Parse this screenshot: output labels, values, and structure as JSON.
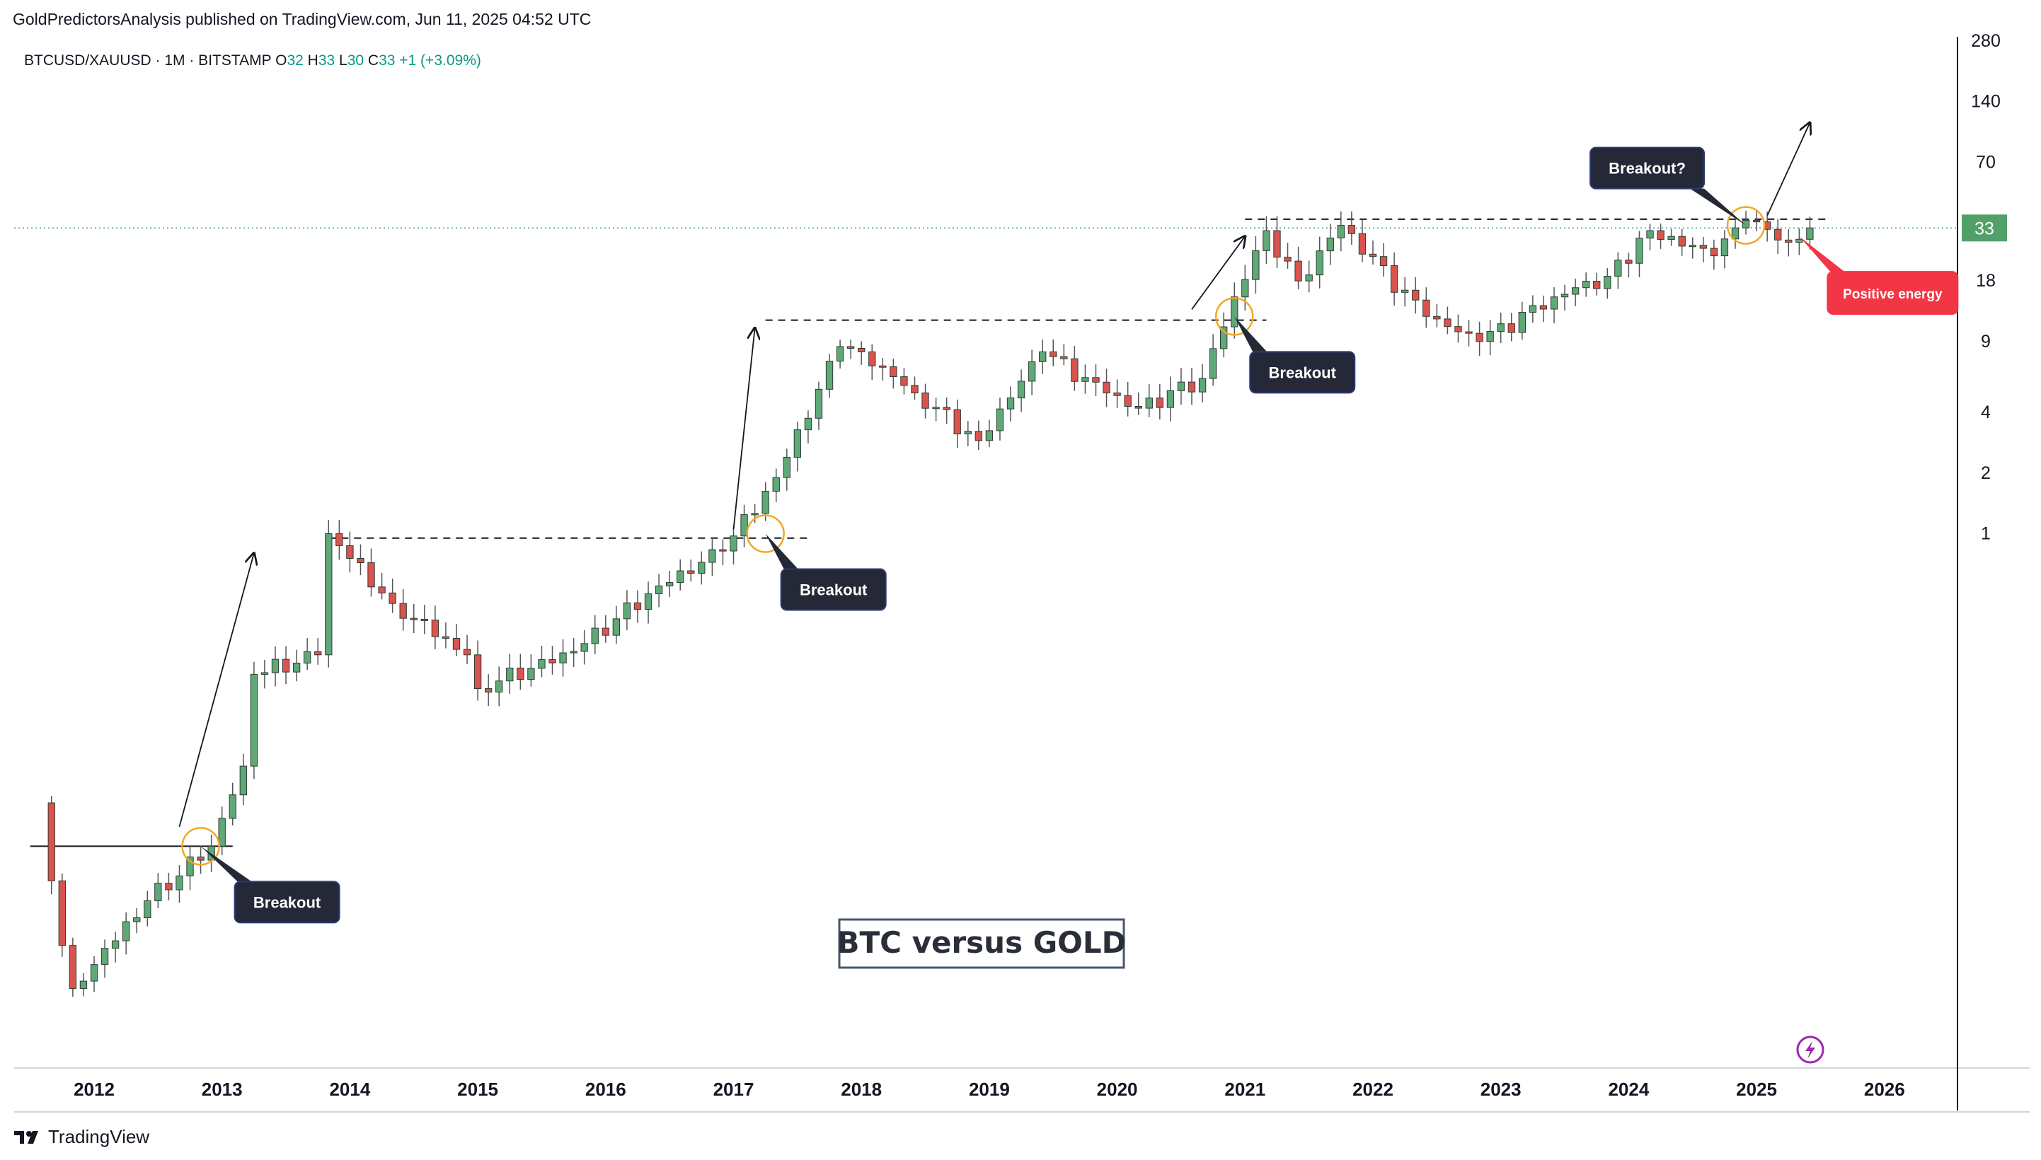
{
  "publisher_line": "GoldPredictorsAnalysis published on TradingView.com, Jun 11, 2025 04:52 UTC",
  "symbol": {
    "name": "BTCUSD/XAUUSD",
    "interval": "1M",
    "exchange": "BITSTAMP",
    "ohlc": [
      {
        "label": "O",
        "value": "32"
      },
      {
        "label": "H",
        "value": "33"
      },
      {
        "label": "L",
        "value": "30"
      },
      {
        "label": "C",
        "value": "33"
      }
    ],
    "change": "+1 (+3.09%)"
  },
  "brand": "TradingView",
  "colors": {
    "up": "#5fa878",
    "down": "#d9534f",
    "last_price_badge": "#51a06a",
    "callout_dark": "#252836",
    "callout_border": "#2b3a78",
    "callout_red": "#f23645",
    "circle": "#f5a623",
    "text": "#131722"
  },
  "icons": [
    "tradingview-logo-icon",
    "lightning-icon"
  ],
  "chart_data": {
    "type": "candlestick",
    "title": "BTC versus GOLD",
    "scale": "log",
    "ylim": [
      0.0025,
      280
    ],
    "y_ticks": [
      280,
      140,
      70,
      18,
      9,
      4,
      2,
      1
    ],
    "last_price": 33,
    "x_ticks": [
      "2012",
      "2013",
      "2014",
      "2015",
      "2016",
      "2017",
      "2018",
      "2019",
      "2020",
      "2021",
      "2022",
      "2023",
      "2024",
      "2025",
      "2026"
    ],
    "anchors": [
      [
        "2011-08",
        0.046
      ],
      [
        "2011-10",
        0.009
      ],
      [
        "2011-11",
        0.0055
      ],
      [
        "2012-06",
        0.015
      ],
      [
        "2012-12",
        0.028
      ],
      [
        "2013-03",
        0.07
      ],
      [
        "2013-04",
        0.2
      ],
      [
        "2013-10",
        0.25
      ],
      [
        "2013-11",
        1.0
      ],
      [
        "2014-05",
        0.45
      ],
      [
        "2014-12",
        0.25
      ],
      [
        "2015-01",
        0.17
      ],
      [
        "2015-10",
        0.26
      ],
      [
        "2016-06",
        0.55
      ],
      [
        "2016-12",
        0.82
      ],
      [
        "2017-05",
        1.9
      ],
      [
        "2017-11",
        8.5
      ],
      [
        "2018-01",
        8.0
      ],
      [
        "2018-06",
        5.0
      ],
      [
        "2018-12",
        2.9
      ],
      [
        "2019-06",
        8.0
      ],
      [
        "2019-12",
        5.0
      ],
      [
        "2020-03",
        4.2
      ],
      [
        "2020-09",
        5.9
      ],
      [
        "2020-12",
        15.0
      ],
      [
        "2021-03",
        32.0
      ],
      [
        "2021-06",
        18.0
      ],
      [
        "2021-10",
        34.0
      ],
      [
        "2022-06",
        12.0
      ],
      [
        "2022-11",
        9.0
      ],
      [
        "2023-06",
        15.0
      ],
      [
        "2023-11",
        19.0
      ],
      [
        "2024-03",
        32.0
      ],
      [
        "2024-09",
        24.0
      ],
      [
        "2024-12",
        36.0
      ],
      [
        "2025-04",
        28.0
      ],
      [
        "2025-06",
        33.0
      ]
    ],
    "breakout_levels": [
      {
        "value": 0.028,
        "from": "2011-07",
        "to": "2013-02"
      },
      {
        "value": 0.95,
        "from": "2013-11",
        "to": "2017-08"
      },
      {
        "value": 11.5,
        "from": "2017-04",
        "to": "2021-03"
      },
      {
        "value": 36.5,
        "from": "2021-01",
        "to": "2025-08"
      }
    ],
    "annotations": [
      {
        "label": "Breakout",
        "date": "2012-11",
        "value": 0.028
      },
      {
        "label": "Breakout",
        "date": "2017-04",
        "value": 1.0
      },
      {
        "label": "Breakout",
        "date": "2020-12",
        "value": 12.0
      },
      {
        "label": "Breakout?",
        "date": "2024-12",
        "value": 34.0
      },
      {
        "label": "Positive energy",
        "date": "2025-05",
        "value": 30.0
      }
    ]
  }
}
